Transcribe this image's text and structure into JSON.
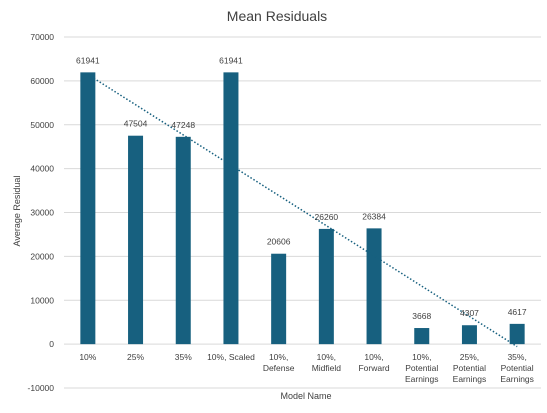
{
  "chart_data": {
    "type": "bar",
    "title": "Mean Residuals",
    "xlabel": "Model Name",
    "ylabel": "Average Residual",
    "categories": [
      [
        "10%"
      ],
      [
        "25%"
      ],
      [
        "35%"
      ],
      [
        "10%, Scaled"
      ],
      [
        "10%,",
        "Defense"
      ],
      [
        "10%,",
        "Midfield"
      ],
      [
        "10%,",
        "Forward"
      ],
      [
        "10%,",
        "Potential",
        "Earnings"
      ],
      [
        "25%,",
        "Potential",
        "Earnings"
      ],
      [
        "35%,",
        "Potential",
        "Earnings"
      ]
    ],
    "values": [
      61941,
      47504,
      47248,
      61941,
      20606,
      26260,
      26384,
      3668,
      4307,
      4617
    ],
    "data_labels": [
      "61941",
      "47504",
      "47248",
      "61941",
      "20606",
      "26260",
      "26384",
      "3668",
      "4307",
      "4617"
    ],
    "ylim": [
      -10000,
      70000
    ],
    "yticks": [
      -10000,
      0,
      10000,
      20000,
      30000,
      40000,
      50000,
      60000,
      70000
    ],
    "grid": true,
    "legend": "none",
    "trendline": {
      "type": "linear",
      "style": "dotted"
    },
    "colors": {
      "bar": "#17607f",
      "trend": "#17607f",
      "grid": "#d9d9d9",
      "text": "#404040"
    }
  }
}
